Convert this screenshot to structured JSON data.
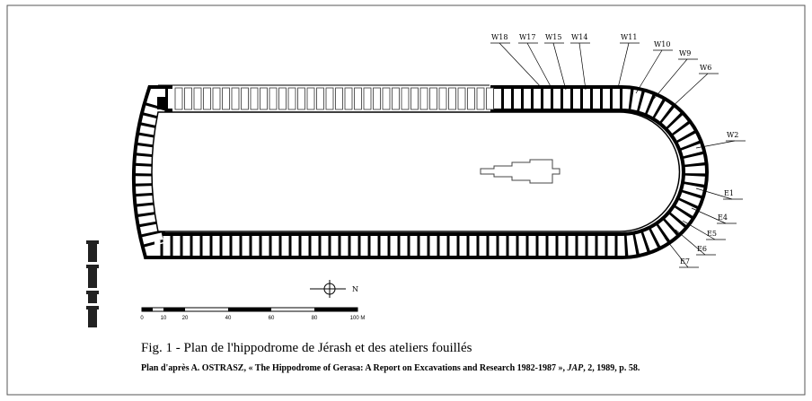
{
  "figure": {
    "labels": [
      "W18",
      "W17",
      "W15",
      "W14",
      "W11",
      "W10",
      "W9",
      "W6",
      "W2",
      "E1",
      "E4",
      "E5",
      "E6",
      "E7"
    ],
    "north": "N",
    "scale": [
      "0",
      "10",
      "20",
      "40",
      "60",
      "80",
      "100 M"
    ],
    "caption": "Fig. 1 - Plan de l'hippodrome de Jérash et des ateliers fouillés",
    "source": {
      "before": "Plan d'après A. OSTRASZ, « The Hippodrome of Gerasa: A Report on Excavations and Research 1982-1987 », ",
      "journal": "JAP",
      "after": ", 2, 1989, p. 58."
    }
  }
}
